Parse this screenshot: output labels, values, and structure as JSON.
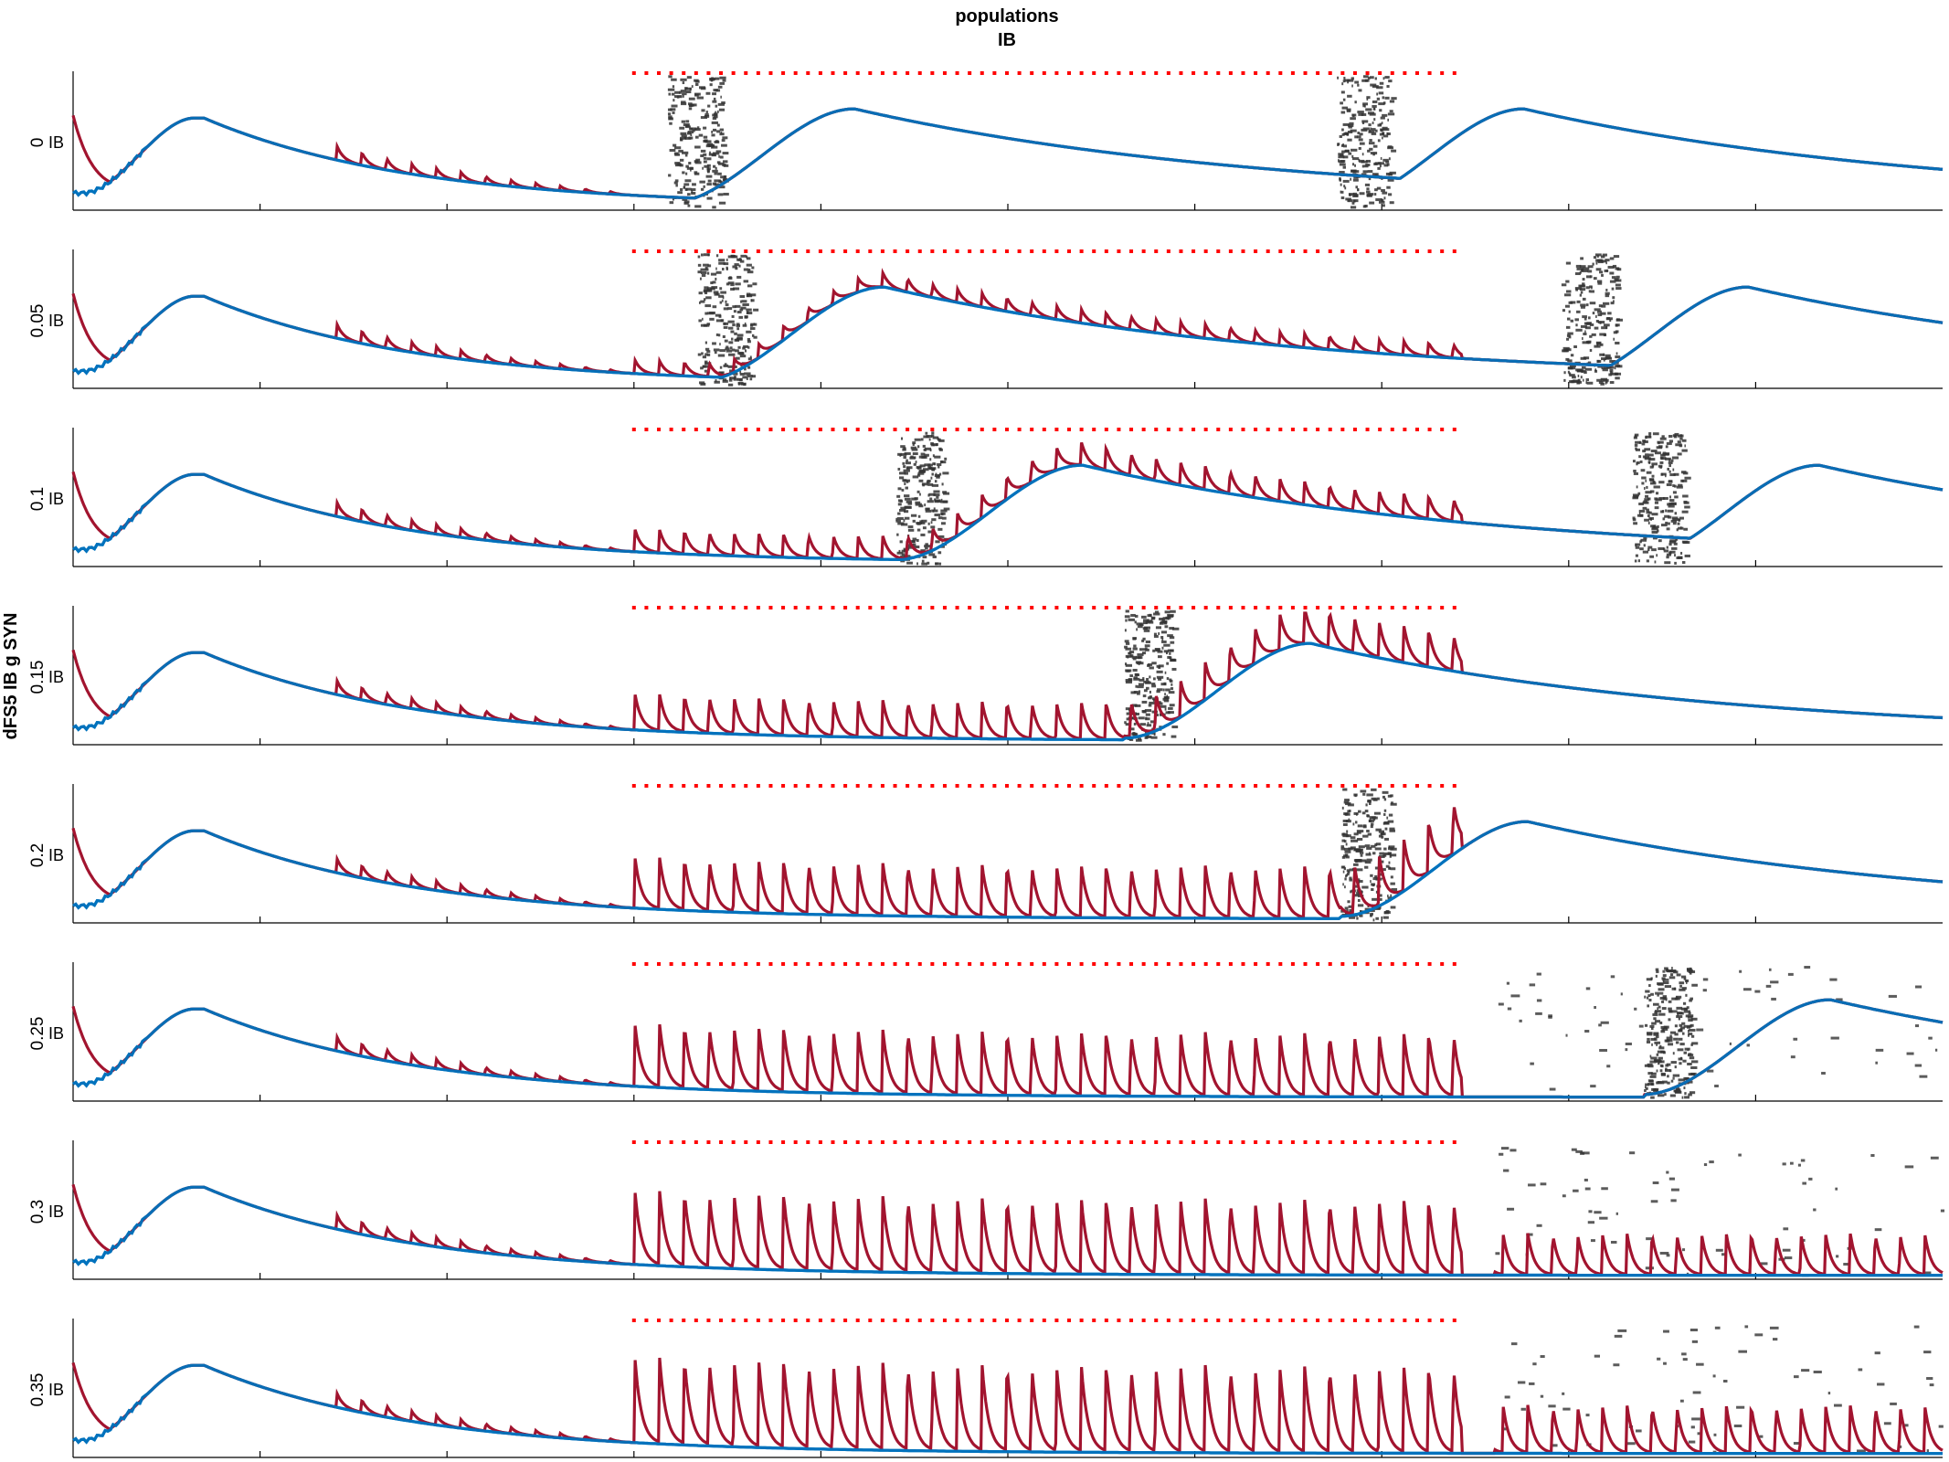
{
  "figure": {
    "title_line1": "populations",
    "title_line2": "IB",
    "ylabel": "dFS5 IB g SYN"
  },
  "chart_data": {
    "type": "line",
    "title": "populations IB",
    "ylabel": "dFS5 IB g SYN",
    "panel_label": "IB",
    "parameter_values": [
      "0",
      "0.05",
      "0.1",
      "0.15",
      "0.2",
      "0.25",
      "0.3",
      "0.35"
    ],
    "x_tick_fractions": [
      0.1,
      0.2,
      0.3,
      0.4,
      0.5,
      0.6,
      0.7,
      0.8,
      0.9
    ],
    "stimulus_window_fraction": [
      0.3,
      0.74
    ],
    "colors": {
      "red_trace": "#a2142f",
      "blue_trace": "#0072bd",
      "raster": "#333333",
      "stimulus_dots": "#ff0000",
      "axis": "#000000"
    },
    "series": [
      {
        "name": "",
        "color": "#a2142f",
        "style": "red_trace"
      },
      {
        "name": "",
        "color": "#0072bd",
        "style": "blue_trace"
      }
    ],
    "panels": [
      {
        "value": "0",
        "pulse_amp": 0.0,
        "bursts": [
          [
            0.318,
            0.348
          ],
          [
            0.676,
            0.705
          ]
        ],
        "post_pulses": false
      },
      {
        "value": "0.05",
        "pulse_amp": 0.12,
        "bursts": [
          [
            0.334,
            0.364
          ],
          [
            0.796,
            0.826
          ]
        ],
        "post_pulses": false
      },
      {
        "value": "0.1",
        "pulse_amp": 0.2,
        "bursts": [
          [
            0.44,
            0.466
          ],
          [
            0.834,
            0.862
          ]
        ],
        "post_pulses": false
      },
      {
        "value": "0.15",
        "pulse_amp": 0.32,
        "bursts": [
          [
            0.562,
            0.588
          ]
        ],
        "post_pulses": false
      },
      {
        "value": "0.2",
        "pulse_amp": 0.45,
        "bursts": [
          [
            0.678,
            0.705
          ]
        ],
        "post_pulses": false
      },
      {
        "value": "0.25",
        "pulse_amp": 0.55,
        "bursts": [
          [
            0.84,
            0.866
          ]
        ],
        "post_pulses": false
      },
      {
        "value": "0.3",
        "pulse_amp": 0.65,
        "bursts": [],
        "post_pulses": true
      },
      {
        "value": "0.35",
        "pulse_amp": 0.75,
        "bursts": [],
        "post_pulses": true
      }
    ]
  }
}
